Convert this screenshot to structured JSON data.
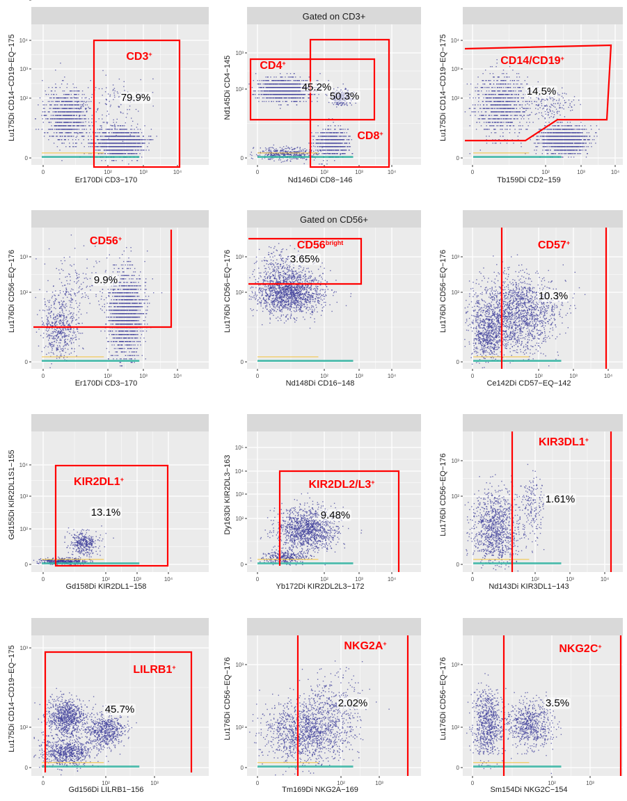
{
  "colors": {
    "panel_bg": "#ebebeb",
    "strip_bg": "#d9d9d9",
    "grid": "#ffffff",
    "gate": "#ff0000",
    "dots": "#3d3d99",
    "dense": "#2fb3a0",
    "hot": "#f2c542"
  },
  "chart_data": [
    {
      "type": "scatter",
      "strip": "",
      "xlabel": "Er170Di CD3−170",
      "ylabel": "Lu175Di CD14−CD19−EQ−175",
      "xticks": [
        "0",
        "10²",
        "10³",
        "10⁴"
      ],
      "yticks": [
        "0",
        "10²",
        "10³",
        "10⁴"
      ],
      "gates": [
        {
          "label": "CD3",
          "sup": "+",
          "percent": "79.9%"
        }
      ]
    },
    {
      "type": "scatter",
      "strip": "Gated on CD3+",
      "xlabel": "Nd146Di CD8−146",
      "ylabel": "Nd145Di CD4−145",
      "xticks": [
        "0",
        "10²",
        "10³",
        "10⁴"
      ],
      "yticks": [
        "0",
        "10²",
        "10³"
      ],
      "gates": [
        {
          "label": "CD4",
          "sup": "+",
          "percent": "45.2%"
        },
        {
          "label": "CD8",
          "sup": "+",
          "percent": "50.3%"
        }
      ]
    },
    {
      "type": "scatter",
      "strip": "",
      "xlabel": "Tb159Di CD2−159",
      "ylabel": "Lu175Di CD14−CD19−EQ−175",
      "xticks": [
        "0",
        "10²",
        "10³",
        "10⁴"
      ],
      "yticks": [
        "0",
        "10²",
        "10³",
        "10⁴"
      ],
      "gates": [
        {
          "label": "CD14/CD19",
          "sup": "+",
          "percent": "14.5%"
        }
      ]
    },
    {
      "type": "scatter",
      "strip": "",
      "xlabel": "Er170Di CD3−170",
      "ylabel": "Lu176Di CD56−EQ−176",
      "xticks": [
        "0",
        "10²",
        "10³",
        "10⁴"
      ],
      "yticks": [
        "0",
        "10²",
        "10³"
      ],
      "gates": [
        {
          "label": "CD56",
          "sup": "+",
          "percent": "9.9%"
        }
      ]
    },
    {
      "type": "scatter",
      "strip": "Gated on CD56+",
      "xlabel": "Nd148Di CD16−148",
      "ylabel": "Lu176Di CD56−EQ−176",
      "xticks": [
        "0",
        "10²",
        "10³",
        "10⁴"
      ],
      "yticks": [
        "0",
        "10²",
        "10³"
      ],
      "gates": [
        {
          "label": "CD56",
          "sup": "bright",
          "percent": "3.65%"
        }
      ]
    },
    {
      "type": "scatter",
      "strip": "",
      "xlabel": "Ce142Di CD57−EQ−142",
      "ylabel": "Lu176Di CD56−EQ−176",
      "xticks": [
        "0",
        "10²",
        "10³",
        "10⁴"
      ],
      "yticks": [
        "0",
        "10²",
        "10³"
      ],
      "gates": [
        {
          "label": "CD57",
          "sup": "+",
          "percent": "10.3%"
        }
      ]
    },
    {
      "type": "scatter",
      "strip": "",
      "xlabel": "Gd158Di KIR2DL1−158",
      "ylabel": "Gd155Di KIR2DL1S1−155",
      "xticks": [
        "0",
        "10²",
        "10³",
        "10⁴"
      ],
      "yticks": [
        "0",
        "10²",
        "10³",
        "10⁴"
      ],
      "gates": [
        {
          "label": "KIR2DL1",
          "sup": "+",
          "percent": "13.1%"
        }
      ]
    },
    {
      "type": "scatter",
      "strip": "",
      "xlabel": "Yb172Di KIR2DL2L3−172",
      "ylabel": "Dy163Di KIR2DL3−163",
      "xticks": [
        "0",
        "10²",
        "10³",
        "10⁴"
      ],
      "yticks": [
        "0",
        "10²",
        "10³",
        "10⁴",
        "10⁵"
      ],
      "gates": [
        {
          "label": "KIR2DL2/L3",
          "sup": "+",
          "percent": "9.48%"
        }
      ]
    },
    {
      "type": "scatter",
      "strip": "",
      "xlabel": "Nd143Di KIR3DL1−143",
      "ylabel": "Lu176Di CD56−EQ−176",
      "xticks": [
        "0",
        "10²",
        "10³",
        "10⁴"
      ],
      "yticks": [
        "0",
        "10²",
        "10³"
      ],
      "gates": [
        {
          "label": "KIR3DL1",
          "sup": "+",
          "percent": "1.61%"
        }
      ]
    },
    {
      "type": "scatter",
      "strip": "",
      "xlabel": "Gd156Di LILRB1−156",
      "ylabel": "Lu175Di CD14−CD19−EQ−175",
      "xticks": [
        "0",
        "10²",
        "10³"
      ],
      "yticks": [
        "0",
        "10²",
        "10³",
        "10⁴"
      ],
      "gates": [
        {
          "label": "LILRB1",
          "sup": "+",
          "percent": "45.7%"
        }
      ]
    },
    {
      "type": "scatter",
      "strip": "",
      "xlabel": "Tm169Di NKG2A−169",
      "ylabel": "Lu176Di CD56−EQ−176",
      "xticks": [
        "0",
        "10²",
        "10³"
      ],
      "yticks": [
        "0",
        "10²",
        "10³"
      ],
      "gates": [
        {
          "label": "NKG2A",
          "sup": "+",
          "percent": "2.02%"
        }
      ]
    },
    {
      "type": "scatter",
      "strip": "",
      "xlabel": "Sm154Di NKG2C−154",
      "ylabel": "Lu176Di CD56−EQ−176",
      "xticks": [
        "0",
        "10²",
        "10³"
      ],
      "yticks": [
        "0",
        "10²",
        "10³"
      ],
      "gates": [
        {
          "label": "NKG2C",
          "sup": "+",
          "percent": "3.5%"
        }
      ]
    }
  ]
}
